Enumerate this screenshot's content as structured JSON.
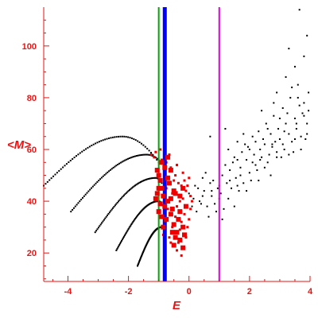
{
  "chart_data": {
    "type": "scatter",
    "title": "",
    "xlabel": "E",
    "ylabel": "<M>",
    "xlim": [
      -4.8,
      4.0
    ],
    "ylim": [
      9,
      115
    ],
    "xticks": [
      -4,
      -2,
      0,
      2,
      4
    ],
    "yticks": [
      20,
      40,
      60,
      80,
      100
    ],
    "grid": false,
    "colors": {
      "axis": "#ee1111",
      "black_points": "#000000",
      "red_points": "#ee0000",
      "line_green": "#00aa00",
      "line_blue": "#0000ff",
      "line_magenta": "#dd00dd"
    },
    "vertical_lines": [
      {
        "x": -1.0,
        "color": "#00aa00"
      },
      {
        "x": -0.8,
        "color": "#0000ff"
      },
      {
        "x": 1.0,
        "color": "#dd00dd"
      }
    ],
    "curves": [
      {
        "x_start": -4.8,
        "x_peak": -2.2,
        "x_end": -1.0,
        "y_start": 46,
        "y_peak": 65,
        "y_end": 55
      },
      {
        "x_start": -3.9,
        "x_peak": -1.4,
        "x_end": -1.0,
        "y_start": 36,
        "y_peak": 58,
        "y_end": 56
      },
      {
        "x_start": -3.1,
        "x_peak": -1.1,
        "x_end": -0.9,
        "y_start": 28,
        "y_peak": 49,
        "y_end": 47
      },
      {
        "x_start": -2.4,
        "x_peak": -1.0,
        "x_end": -0.9,
        "y_start": 21,
        "y_peak": 40,
        "y_end": 39
      },
      {
        "x_start": -1.7,
        "x_peak": -0.9,
        "x_end": -0.9,
        "y_start": 15,
        "y_peak": 30,
        "y_end": 30
      }
    ],
    "big_red_points": [
      [
        -1.05,
        52
      ],
      [
        -1.0,
        50
      ],
      [
        -0.95,
        48
      ],
      [
        -1.0,
        45
      ],
      [
        -0.9,
        45
      ],
      [
        -1.05,
        43
      ],
      [
        -0.85,
        42
      ],
      [
        -0.7,
        40
      ],
      [
        -0.95,
        39
      ],
      [
        -0.8,
        38
      ],
      [
        -0.6,
        41
      ],
      [
        -0.55,
        37
      ],
      [
        -0.5,
        44
      ],
      [
        -0.45,
        43
      ],
      [
        -0.3,
        42
      ],
      [
        -0.6,
        35
      ],
      [
        -0.75,
        33
      ],
      [
        -0.5,
        31
      ],
      [
        -0.4,
        28
      ],
      [
        -0.45,
        26
      ],
      [
        -0.3,
        25
      ],
      [
        -0.5,
        23
      ],
      [
        -0.2,
        22
      ],
      [
        -1.0,
        36
      ],
      [
        -0.9,
        34
      ],
      [
        -0.7,
        49
      ],
      [
        -0.6,
        52
      ],
      [
        -0.8,
        53
      ],
      [
        -0.2,
        45
      ],
      [
        -0.1,
        38
      ],
      [
        -0.3,
        36
      ],
      [
        -0.65,
        47
      ],
      [
        -1.1,
        41
      ],
      [
        -0.85,
        30
      ],
      [
        -0.55,
        28
      ],
      [
        -0.35,
        33
      ],
      [
        -0.2,
        30
      ],
      [
        -0.15,
        27
      ],
      [
        -0.9,
        55
      ],
      [
        -0.7,
        57
      ]
    ],
    "small_red_points": [
      [
        -0.9,
        56
      ],
      [
        -0.75,
        55
      ],
      [
        -0.6,
        53
      ],
      [
        -0.45,
        50
      ],
      [
        -0.35,
        47
      ],
      [
        -0.25,
        46
      ],
      [
        -0.1,
        44
      ],
      [
        0.05,
        42
      ],
      [
        -0.15,
        48
      ],
      [
        -0.05,
        46
      ],
      [
        0.1,
        40
      ],
      [
        -0.4,
        54
      ],
      [
        -0.2,
        51
      ],
      [
        0.0,
        49
      ],
      [
        -0.65,
        58
      ],
      [
        -0.5,
        48
      ],
      [
        -0.3,
        40
      ],
      [
        -0.15,
        35
      ],
      [
        0.0,
        33
      ],
      [
        -0.05,
        30
      ],
      [
        -0.4,
        38
      ],
      [
        -0.25,
        32
      ],
      [
        -0.55,
        30
      ],
      [
        -0.65,
        26
      ],
      [
        -0.35,
        24
      ],
      [
        -0.1,
        26
      ],
      [
        -0.75,
        45
      ],
      [
        -0.55,
        43
      ],
      [
        -0.2,
        41
      ],
      [
        0.05,
        37
      ],
      [
        -0.7,
        37
      ],
      [
        -0.45,
        34
      ],
      [
        -0.3,
        29
      ],
      [
        -0.85,
        27
      ],
      [
        -0.6,
        24
      ],
      [
        -0.4,
        21
      ],
      [
        -0.25,
        19
      ],
      [
        -0.8,
        21
      ],
      [
        -1.15,
        57
      ],
      [
        -1.25,
        58
      ],
      [
        -0.95,
        60
      ],
      [
        -1.1,
        59
      ]
    ],
    "black_cloud_points": [
      [
        0.0,
        43
      ],
      [
        0.2,
        46
      ],
      [
        0.35,
        40
      ],
      [
        0.45,
        49
      ],
      [
        0.5,
        44
      ],
      [
        0.6,
        38
      ],
      [
        0.7,
        47
      ],
      [
        0.75,
        42
      ],
      [
        0.85,
        39
      ],
      [
        0.95,
        45
      ],
      [
        1.05,
        43
      ],
      [
        1.1,
        50
      ],
      [
        1.2,
        54
      ],
      [
        1.25,
        47
      ],
      [
        1.3,
        60
      ],
      [
        1.35,
        52
      ],
      [
        1.4,
        45
      ],
      [
        1.5,
        57
      ],
      [
        1.55,
        49
      ],
      [
        1.6,
        63
      ],
      [
        1.7,
        53
      ],
      [
        1.75,
        59
      ],
      [
        1.8,
        47
      ],
      [
        1.9,
        56
      ],
      [
        1.95,
        61
      ],
      [
        2.0,
        51
      ],
      [
        2.1,
        65
      ],
      [
        2.15,
        58
      ],
      [
        2.2,
        54
      ],
      [
        2.3,
        67
      ],
      [
        2.35,
        60
      ],
      [
        2.4,
        57
      ],
      [
        2.5,
        62
      ],
      [
        2.55,
        70
      ],
      [
        2.6,
        55
      ],
      [
        2.7,
        66
      ],
      [
        2.75,
        61
      ],
      [
        2.8,
        73
      ],
      [
        2.9,
        59
      ],
      [
        2.95,
        68
      ],
      [
        3.0,
        64
      ],
      [
        3.1,
        76
      ],
      [
        3.15,
        60
      ],
      [
        3.2,
        70
      ],
      [
        3.3,
        66
      ],
      [
        3.35,
        80
      ],
      [
        3.4,
        63
      ],
      [
        3.5,
        72
      ],
      [
        3.55,
        68
      ],
      [
        3.6,
        85
      ],
      [
        3.7,
        65
      ],
      [
        3.75,
        74
      ],
      [
        3.8,
        78
      ],
      [
        3.9,
        70
      ],
      [
        3.95,
        82
      ],
      [
        0.1,
        38
      ],
      [
        0.3,
        45
      ],
      [
        0.55,
        51
      ],
      [
        0.8,
        48
      ],
      [
        1.0,
        41
      ],
      [
        1.15,
        37
      ],
      [
        1.45,
        55
      ],
      [
        1.65,
        44
      ],
      [
        1.85,
        62
      ],
      [
        2.05,
        48
      ],
      [
        2.25,
        52
      ],
      [
        2.45,
        64
      ],
      [
        2.65,
        58
      ],
      [
        2.85,
        63
      ],
      [
        3.05,
        57
      ],
      [
        3.25,
        74
      ],
      [
        3.45,
        59
      ],
      [
        3.65,
        77
      ],
      [
        3.85,
        64
      ],
      [
        0.25,
        36
      ],
      [
        0.4,
        39
      ],
      [
        0.65,
        34
      ],
      [
        0.9,
        36
      ],
      [
        1.1,
        33
      ],
      [
        1.3,
        41
      ],
      [
        1.5,
        38
      ],
      [
        1.7,
        50
      ],
      [
        1.9,
        44
      ],
      [
        2.1,
        55
      ],
      [
        2.3,
        48
      ],
      [
        2.5,
        53
      ],
      [
        2.7,
        50
      ],
      [
        2.9,
        57
      ],
      [
        3.1,
        62
      ],
      [
        3.3,
        58
      ],
      [
        3.5,
        64
      ],
      [
        3.7,
        60
      ],
      [
        3.9,
        66
      ],
      [
        0.7,
        65
      ],
      [
        1.2,
        68
      ],
      [
        2.8,
        78
      ],
      [
        3.2,
        88
      ],
      [
        3.5,
        92
      ],
      [
        3.65,
        114
      ],
      [
        3.8,
        96
      ],
      [
        3.9,
        104
      ],
      [
        2.4,
        75
      ],
      [
        2.9,
        82
      ],
      [
        3.3,
        99
      ],
      [
        1.6,
        56
      ],
      [
        1.8,
        66
      ],
      [
        2.0,
        60
      ],
      [
        2.2,
        63
      ],
      [
        2.6,
        68
      ],
      [
        3.0,
        72
      ],
      [
        3.4,
        84
      ],
      [
        3.6,
        80
      ],
      [
        3.8,
        73
      ],
      [
        0.15,
        41
      ],
      [
        0.45,
        42
      ],
      [
        0.75,
        44
      ],
      [
        1.0,
        46
      ],
      [
        1.35,
        48
      ],
      [
        1.6,
        46
      ],
      [
        2.35,
        56
      ],
      [
        2.75,
        62
      ],
      [
        3.15,
        67
      ],
      [
        3.55,
        70
      ],
      [
        3.95,
        75
      ]
    ]
  }
}
